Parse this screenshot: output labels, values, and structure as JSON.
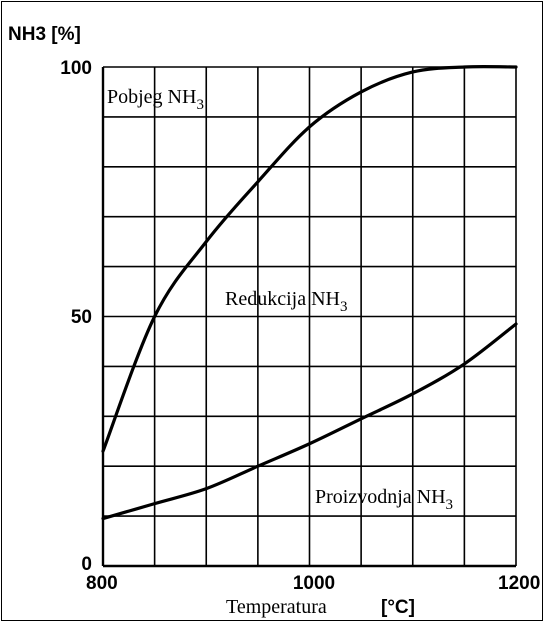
{
  "chart_data": {
    "type": "line",
    "ylabel": "NH3 [%]",
    "xlabel": "Temperatura",
    "xunit": "[°C]",
    "xlim": [
      800,
      1200
    ],
    "ylim": [
      0,
      100
    ],
    "x_ticks": [
      800,
      1000,
      1200
    ],
    "x_tick_labels": [
      "800",
      "1000",
      "1200"
    ],
    "y_ticks": [
      0,
      50,
      100
    ],
    "y_tick_labels": [
      "0",
      "50",
      "100"
    ],
    "grid": true,
    "annotations": [
      {
        "text": "Pobjeg NH",
        "sub": "3",
        "x": 802,
        "y": 94
      },
      {
        "text": "Redukcija NH",
        "sub": "3",
        "x": 900,
        "y": 53
      },
      {
        "text": "Proizvodnja NH",
        "sub": "3",
        "x": 1000,
        "y": 12.5
      }
    ],
    "series": [
      {
        "x": [
          800,
          850,
          900,
          950,
          1000,
          1050,
          1100,
          1150,
          1200
        ],
        "values": [
          23,
          50,
          65,
          77,
          88,
          95,
          99,
          100,
          100
        ]
      },
      {
        "x": [
          800,
          850,
          900,
          950,
          1000,
          1050,
          1100,
          1150,
          1200
        ],
        "values": [
          9.5,
          12.5,
          15.5,
          20,
          24.5,
          29.5,
          34.5,
          40.5,
          48.5
        ]
      }
    ]
  }
}
